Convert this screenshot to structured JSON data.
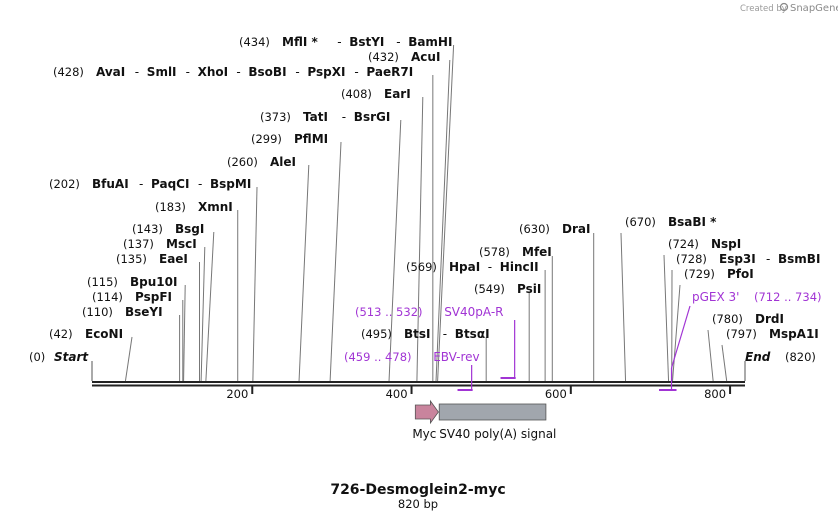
{
  "branding": {
    "created_by": "Created by",
    "product": "SnapGene"
  },
  "map": {
    "title": "726-Desmoglein2-myc",
    "length_label": "820 bp",
    "length_bp": 820,
    "ticks": [
      {
        "bp": 200,
        "label": "200"
      },
      {
        "bp": 400,
        "label": "400"
      },
      {
        "bp": 600,
        "label": "600"
      },
      {
        "bp": 800,
        "label": "800"
      }
    ]
  },
  "enzymes": [
    {
      "pos": "(434)",
      "names": [
        "MflI",
        "BstYI",
        "BamHI"
      ],
      "cut": 434,
      "star": [
        true,
        false,
        false
      ]
    },
    {
      "pos": "(432)",
      "names": [
        "AcuI"
      ],
      "cut": 432
    },
    {
      "pos": "(428)",
      "names": [
        "AvaI",
        "SmlI",
        "XhoI",
        "BsoBI",
        "PspXI",
        "PaeR7I"
      ],
      "cut": 428
    },
    {
      "pos": "(408)",
      "names": [
        "EarI"
      ],
      "cut": 408
    },
    {
      "pos": "(373)",
      "names": [
        "TatI",
        "BsrGI"
      ],
      "cut": 373
    },
    {
      "pos": "(299)",
      "names": [
        "PflMI"
      ],
      "cut": 299
    },
    {
      "pos": "(260)",
      "names": [
        "AleI"
      ],
      "cut": 260
    },
    {
      "pos": "(202)",
      "names": [
        "BfuAI",
        "PaqCI",
        "BspMI"
      ],
      "cut": 202
    },
    {
      "pos": "(183)",
      "names": [
        "XmnI"
      ],
      "cut": 183
    },
    {
      "pos": "(143)",
      "names": [
        "BsgI"
      ],
      "cut": 143
    },
    {
      "pos": "(137)",
      "names": [
        "MscI"
      ],
      "cut": 137
    },
    {
      "pos": "(135)",
      "names": [
        "EaeI"
      ],
      "cut": 135
    },
    {
      "pos": "(115)",
      "names": [
        "Bpu10I"
      ],
      "cut": 115
    },
    {
      "pos": "(114)",
      "names": [
        "PspFI"
      ],
      "cut": 114
    },
    {
      "pos": "(110)",
      "names": [
        "BseYI"
      ],
      "cut": 110
    },
    {
      "pos": "(42)",
      "names": [
        "EcoNI"
      ],
      "cut": 42
    },
    {
      "pos": "(0)",
      "names": [
        "Start"
      ],
      "cut": 0,
      "italic": true
    },
    {
      "pos": "(630)",
      "names": [
        "DraI"
      ],
      "cut": 630
    },
    {
      "pos": "(578)",
      "names": [
        "MfeI"
      ],
      "cut": 578
    },
    {
      "pos": "(569)",
      "names": [
        "HpaI",
        "HincII"
      ],
      "cut": 569
    },
    {
      "pos": "(549)",
      "names": [
        "PsiI"
      ],
      "cut": 549
    },
    {
      "pos": "(495)",
      "names": [
        "BtsI",
        "BtsαI"
      ],
      "cut": 495
    },
    {
      "pos": "(670)",
      "names": [
        "BsaBI"
      ],
      "cut": 670,
      "star": [
        true
      ]
    },
    {
      "pos": "(724)",
      "names": [
        "NspI"
      ],
      "cut": 724
    },
    {
      "pos": "(728)",
      "names": [
        "Esp3I",
        "BsmBI"
      ],
      "cut": 728
    },
    {
      "pos": "(729)",
      "names": [
        "PfoI"
      ],
      "cut": 729
    },
    {
      "pos": "(780)",
      "names": [
        "DrdI"
      ],
      "cut": 780
    },
    {
      "pos": "(797)",
      "names": [
        "MspA1I"
      ],
      "cut": 797
    },
    {
      "pos": "(820)",
      "names": [
        "End"
      ],
      "cut": 820,
      "italic": true
    }
  ],
  "primers": [
    {
      "pos": "(513 .. 532)",
      "name": "SV40pA-R",
      "start": 513,
      "end": 532,
      "direction": "reverse"
    },
    {
      "pos": "(459 .. 478)",
      "name": "EBV-rev",
      "start": 459,
      "end": 478,
      "direction": "reverse"
    },
    {
      "pos": "(712 .. 734)",
      "name": "pGEX 3'",
      "start": 712,
      "end": 734,
      "direction": "reverse"
    }
  ],
  "features": [
    {
      "name": "Myc",
      "start": 406,
      "end": 435,
      "type": "arrow",
      "color": "#c9849d"
    },
    {
      "name": "SV40 poly(A) signal",
      "start": 436,
      "end": 570,
      "type": "box",
      "color": "#a1a6ad"
    }
  ],
  "colors": {
    "primer": "#a134d4",
    "text": "#111111",
    "line": "#888888"
  }
}
